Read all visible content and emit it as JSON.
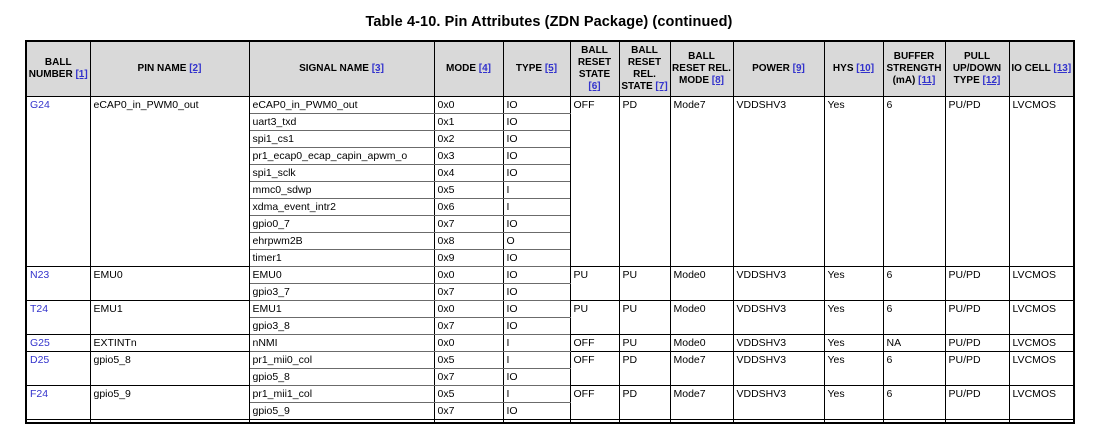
{
  "title": "Table 4-10. Pin Attributes (ZDN Package) (continued)",
  "colors": {
    "link_blue": "#3333cc",
    "header_bg": "#d9d9d9",
    "border": "#000000",
    "page_bg": "#ffffff"
  },
  "columns": [
    {
      "label": "BALL NUMBER",
      "ref": "[1]"
    },
    {
      "label": "PIN NAME",
      "ref": "[2]"
    },
    {
      "label": "SIGNAL NAME",
      "ref": "[3]"
    },
    {
      "label": "MODE",
      "ref": "[4]"
    },
    {
      "label": "TYPE",
      "ref": "[5]"
    },
    {
      "label": "BALL RESET STATE",
      "ref": "[6]"
    },
    {
      "label": "BALL RESET REL. STATE",
      "ref": "[7]"
    },
    {
      "label": "BALL RESET REL. MODE",
      "ref": "[8]"
    },
    {
      "label": "POWER",
      "ref": "[9]"
    },
    {
      "label": "HYS",
      "ref": "[10]"
    },
    {
      "label": "BUFFER STRENGTH (mA)",
      "ref": "[11]"
    },
    {
      "label": "PULL UP/DOWN TYPE",
      "ref": "[12]"
    },
    {
      "label": "IO CELL",
      "ref": "[13]"
    }
  ],
  "rows": [
    {
      "ball": "G24",
      "pin_name": "eCAP0_in_PWM0_out",
      "signals": [
        {
          "signal": "eCAP0_in_PWM0_out",
          "mode": "0x0",
          "type": "IO"
        },
        {
          "signal": "uart3_txd",
          "mode": "0x1",
          "type": "IO"
        },
        {
          "signal": "spi1_cs1",
          "mode": "0x2",
          "type": "IO"
        },
        {
          "signal": "pr1_ecap0_ecap_capin_apwm_o",
          "mode": "0x3",
          "type": "IO"
        },
        {
          "signal": "spi1_sclk",
          "mode": "0x4",
          "type": "IO"
        },
        {
          "signal": "mmc0_sdwp",
          "mode": "0x5",
          "type": "I"
        },
        {
          "signal": "xdma_event_intr2",
          "mode": "0x6",
          "type": "I"
        },
        {
          "signal": "gpio0_7",
          "mode": "0x7",
          "type": "IO"
        },
        {
          "signal": "ehrpwm2B",
          "mode": "0x8",
          "type": "O"
        },
        {
          "signal": "timer1",
          "mode": "0x9",
          "type": "IO"
        }
      ],
      "ball_reset_state": "OFF",
      "ball_reset_rel_state": "PD",
      "ball_reset_rel_mode": "Mode7",
      "power": "VDDSHV3",
      "hys": "Yes",
      "buffer_strength": "6",
      "pull_updown_type": "PU/PD",
      "io_cell": "LVCMOS"
    },
    {
      "ball": "N23",
      "pin_name": "EMU0",
      "signals": [
        {
          "signal": "EMU0",
          "mode": "0x0",
          "type": "IO"
        },
        {
          "signal": "gpio3_7",
          "mode": "0x7",
          "type": "IO"
        }
      ],
      "ball_reset_state": "PU",
      "ball_reset_rel_state": "PU",
      "ball_reset_rel_mode": "Mode0",
      "power": "VDDSHV3",
      "hys": "Yes",
      "buffer_strength": "6",
      "pull_updown_type": "PU/PD",
      "io_cell": "LVCMOS"
    },
    {
      "ball": "T24",
      "pin_name": "EMU1",
      "signals": [
        {
          "signal": "EMU1",
          "mode": "0x0",
          "type": "IO"
        },
        {
          "signal": "gpio3_8",
          "mode": "0x7",
          "type": "IO"
        }
      ],
      "ball_reset_state": "PU",
      "ball_reset_rel_state": "PU",
      "ball_reset_rel_mode": "Mode0",
      "power": "VDDSHV3",
      "hys": "Yes",
      "buffer_strength": "6",
      "pull_updown_type": "PU/PD",
      "io_cell": "LVCMOS"
    },
    {
      "ball": "G25",
      "pin_name": "EXTINTn",
      "signals": [
        {
          "signal": "nNMI",
          "mode": "0x0",
          "type": "I"
        }
      ],
      "ball_reset_state": "OFF",
      "ball_reset_rel_state": "PU",
      "ball_reset_rel_mode": "Mode0",
      "power": "VDDSHV3",
      "hys": "Yes",
      "buffer_strength": "NA",
      "pull_updown_type": "PU/PD",
      "io_cell": "LVCMOS"
    },
    {
      "ball": "D25",
      "pin_name": "gpio5_8",
      "signals": [
        {
          "signal": "pr1_mii0_col",
          "mode": "0x5",
          "type": "I"
        },
        {
          "signal": "gpio5_8",
          "mode": "0x7",
          "type": "IO"
        }
      ],
      "ball_reset_state": "OFF",
      "ball_reset_rel_state": "PD",
      "ball_reset_rel_mode": "Mode7",
      "power": "VDDSHV3",
      "hys": "Yes",
      "buffer_strength": "6",
      "pull_updown_type": "PU/PD",
      "io_cell": "LVCMOS"
    },
    {
      "ball": "F24",
      "pin_name": "gpio5_9",
      "signals": [
        {
          "signal": "pr1_mii1_col",
          "mode": "0x5",
          "type": "I"
        },
        {
          "signal": "gpio5_9",
          "mode": "0x7",
          "type": "IO"
        }
      ],
      "ball_reset_state": "OFF",
      "ball_reset_rel_state": "PD",
      "ball_reset_rel_mode": "Mode7",
      "power": "VDDSHV3",
      "hys": "Yes",
      "buffer_strength": "6",
      "pull_updown_type": "PU/PD",
      "io_cell": "LVCMOS"
    }
  ]
}
